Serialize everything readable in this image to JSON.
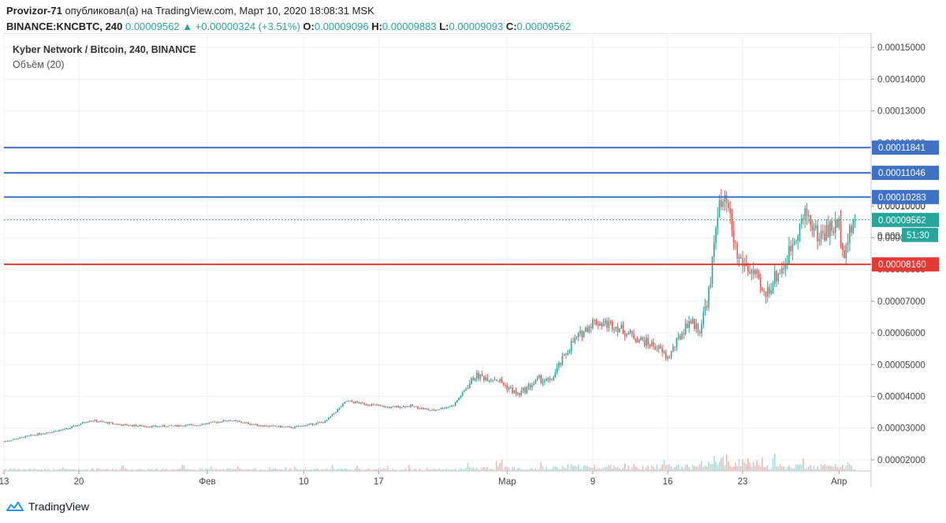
{
  "header": {
    "author": "Provizor-71",
    "published_text": "опубликовал(а) на TradingView.com, Март 10, 2020 18:08:31 MSK",
    "symbol": "BINANCE:KNCBTC, 240",
    "last": "0.00009562",
    "change": "+0.00000324 (+3.51%)",
    "o_label": "O:",
    "o": "0.00009096",
    "h_label": "H:",
    "h": "0.00009883",
    "l_label": "L:",
    "l": "0.00009093",
    "c_label": "C:",
    "c": "0.00009562"
  },
  "legend": {
    "title": "Kyber Network / Bitcoin, 240, BINANCE",
    "volume": "Объём (20)"
  },
  "footer": {
    "brand": "TradingView"
  },
  "colors": {
    "up": "#26a69a",
    "down": "#ef5350",
    "vol_up": "#a8dcd7",
    "vol_down": "#f5b7b5",
    "level_blue": "#3f72c6",
    "level_red": "#e53935",
    "grid": "#eef0f3",
    "axis_text": "#444444"
  },
  "chart_data": {
    "type": "candlestick",
    "title": "Kyber Network / Bitcoin, 240, BINANCE",
    "x_ticks": [
      "13",
      "20",
      "Фев",
      "10",
      "17",
      "Мар",
      "9",
      "16",
      "23",
      "Апр"
    ],
    "y_ticks": [
      "0.00015000",
      "0.00014000",
      "0.00013000",
      "0.00012000",
      "0.00011000",
      "0.00010000",
      "0.00009000",
      "0.00008000",
      "0.00007000",
      "0.00006000",
      "0.00005000",
      "0.00004000",
      "0.00003000",
      "0.00002000"
    ],
    "y_range": [
      1.65e-05,
      0.0001545
    ],
    "x_range_days": [
      0,
      81
    ],
    "price_path": [
      [
        0,
        2.58e-05
      ],
      [
        3,
        2.8e-05
      ],
      [
        6,
        2.98e-05
      ],
      [
        8,
        3.25e-05
      ],
      [
        11,
        3.1e-05
      ],
      [
        14,
        3.05e-05
      ],
      [
        18,
        3.1e-05
      ],
      [
        21,
        3.25e-05
      ],
      [
        24,
        3.08e-05
      ],
      [
        27,
        3.02e-05
      ],
      [
        30,
        3.2e-05
      ],
      [
        32,
        3.85e-05
      ],
      [
        34,
        3.75e-05
      ],
      [
        36,
        3.65e-05
      ],
      [
        38,
        3.7e-05
      ],
      [
        40,
        3.55e-05
      ],
      [
        42,
        3.72e-05
      ],
      [
        44,
        4.65e-05
      ],
      [
        46,
        4.55e-05
      ],
      [
        48,
        4.05e-05
      ],
      [
        50,
        4.55e-05
      ],
      [
        51,
        4.45e-05
      ],
      [
        53,
        5.65e-05
      ],
      [
        55,
        6.35e-05
      ],
      [
        57,
        6.25e-05
      ],
      [
        59,
        5.85e-05
      ],
      [
        61,
        5.55e-05
      ],
      [
        62,
        5.2e-05
      ],
      [
        64,
        6.4e-05
      ],
      [
        65,
        6.1e-05
      ],
      [
        66,
        7.5e-05
      ],
      [
        66.6,
        9.9e-05
      ],
      [
        67.5,
        0.0001005
      ],
      [
        68.5,
        8.4e-05
      ],
      [
        70,
        7.85e-05
      ],
      [
        71,
        7.15e-05
      ],
      [
        72,
        7.75e-05
      ],
      [
        73,
        8.2e-05
      ],
      [
        74,
        9.2e-05
      ],
      [
        75,
        9.75e-05
      ],
      [
        76,
        9.05e-05
      ],
      [
        77,
        9.25e-05
      ],
      [
        78,
        9.4e-05
      ],
      [
        78.5,
        8.62e-05
      ],
      [
        79.5,
        9.56e-05
      ]
    ],
    "volume_max": 5e-05,
    "horizontal_levels": [
      {
        "value": 0.00011841,
        "label": "0.00011841",
        "color": "#3f72c6"
      },
      {
        "value": 0.00011046,
        "label": "0.00011046",
        "color": "#3f72c6"
      },
      {
        "value": 0.00010283,
        "label": "0.00010283",
        "color": "#3f72c6"
      },
      {
        "value": 8.16e-05,
        "label": "0.00008160",
        "color": "#e53935"
      }
    ],
    "last_price": {
      "value": 9.562e-05,
      "label": "0.00009562",
      "countdown": "51:30"
    },
    "partial_tick_labels": [
      "0.00010000",
      "0.000"
    ]
  }
}
